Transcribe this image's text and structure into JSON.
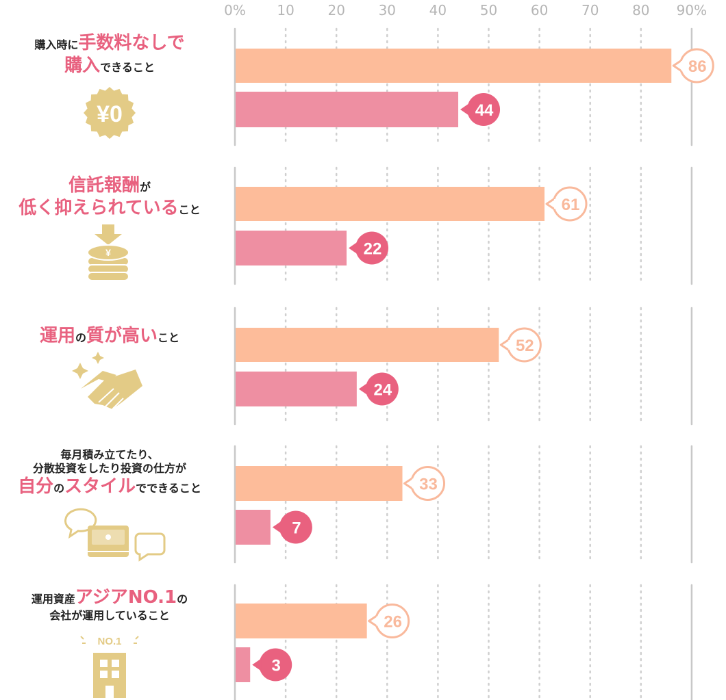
{
  "chart_data": {
    "type": "bar",
    "orientation": "horizontal",
    "x_ticks": [
      "0%",
      "10",
      "20",
      "30",
      "40",
      "50",
      "60",
      "70",
      "80",
      "90%"
    ],
    "xlim": [
      0,
      90
    ],
    "grid": true,
    "categories": [
      {
        "parts": [
          {
            "t": "購入時に",
            "h": false
          },
          {
            "t": "手数料なしで",
            "h": true
          },
          {
            "br": true
          },
          {
            "t": "購入",
            "h": true
          },
          {
            "t": "できること",
            "h": false
          }
        ],
        "icon": "yen-zero-coin-icon",
        "values": [
          86,
          44
        ]
      },
      {
        "parts": [
          {
            "t": "信託報酬",
            "h": true
          },
          {
            "t": "が",
            "h": false
          },
          {
            "br": true
          },
          {
            "t": "低く抑えられている",
            "h": true
          },
          {
            "t": "こと",
            "h": false
          }
        ],
        "icon": "coin-stack-down-arrow-icon",
        "values": [
          61,
          22
        ]
      },
      {
        "parts": [
          {
            "t": "運用",
            "h": true
          },
          {
            "t": "の",
            "h": false
          },
          {
            "t": "質が高い",
            "h": true
          },
          {
            "t": "こと",
            "h": false
          }
        ],
        "icon": "handshake-icon",
        "values": [
          52,
          24
        ]
      },
      {
        "parts": [
          {
            "t": "毎月積み立てたり、",
            "h": false
          },
          {
            "br": true
          },
          {
            "t": "分散投資をしたり投資の仕方が",
            "h": false
          },
          {
            "br": true
          },
          {
            "t": "自分",
            "h": true
          },
          {
            "t": "の",
            "h": false
          },
          {
            "t": "スタイル",
            "h": true
          },
          {
            "t": "でできること",
            "h": false
          }
        ],
        "icon": "speech-bubbles-wallet-icon",
        "values": [
          33,
          7
        ]
      },
      {
        "parts": [
          {
            "t": "運用資産",
            "h": false
          },
          {
            "t": "アジアNO.1",
            "h": true
          },
          {
            "t": "の",
            "h": false
          },
          {
            "br": true
          },
          {
            "t": "会社が運用していること",
            "h": false
          }
        ],
        "icon": "building-icon",
        "values": [
          26,
          3
        ]
      }
    ],
    "series_colors": [
      "#fdbc9a",
      "#ee8fa2"
    ],
    "badge_colors": [
      "#f9b99c",
      "#e9617f"
    ]
  },
  "icon_labels": {
    "coin": "¥0",
    "stack": "¥",
    "badge": "NO.1"
  },
  "colors": {
    "accent": "#e8617f",
    "gold": "#e3cb86",
    "grid": "#cfcfcf",
    "tick": "#b5b5b5"
  }
}
